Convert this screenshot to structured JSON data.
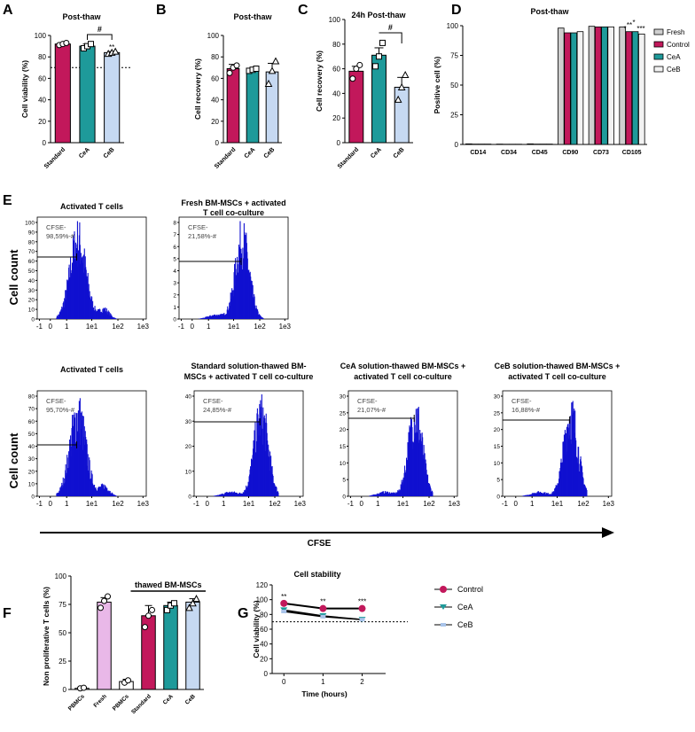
{
  "chart_data": [
    {
      "panel": "A",
      "type": "bar",
      "title": "Post-thaw",
      "ylabel": "Cell viability (%)",
      "ylim": [
        0,
        100
      ],
      "yticks": [
        0,
        20,
        40,
        60,
        80,
        100
      ],
      "categories": [
        "Standard",
        "CeA",
        "CeB"
      ],
      "values": [
        92,
        90,
        84
      ],
      "errors": [
        1,
        2,
        1
      ],
      "colors": [
        "#c2185b",
        "#1e9a9a",
        "#c6d9f2"
      ],
      "points": [
        [
          91,
          92,
          93
        ],
        [
          88,
          90,
          92
        ],
        [
          83,
          84,
          85
        ]
      ],
      "reference_line": 70,
      "annotations": {
        "bracket": "#",
        "stars": [
          "",
          "",
          "**"
        ]
      }
    },
    {
      "panel": "B",
      "type": "bar",
      "title": "Post-thaw",
      "ylabel": "Cell recovery (%)",
      "ylim": [
        0,
        100
      ],
      "yticks": [
        0,
        20,
        40,
        60,
        80,
        100
      ],
      "categories": [
        "Standard",
        "CeA",
        "CeB"
      ],
      "values": [
        69,
        68,
        66
      ],
      "errors": [
        4,
        1,
        8
      ],
      "colors": [
        "#c2185b",
        "#1e9a9a",
        "#c6d9f2"
      ],
      "points": [
        [
          65,
          70,
          72
        ],
        [
          67,
          68,
          69
        ],
        [
          55,
          67,
          76
        ]
      ]
    },
    {
      "panel": "C",
      "type": "bar",
      "title": "24h Post-thaw",
      "ylabel": "Cell recovery (%)",
      "ylim": [
        0,
        100
      ],
      "yticks": [
        0,
        20,
        40,
        60,
        80,
        100
      ],
      "categories": [
        "Standard",
        "CeA",
        "CeB"
      ],
      "values": [
        58,
        71,
        45
      ],
      "errors": [
        4,
        6,
        8
      ],
      "colors": [
        "#c2185b",
        "#1e9a9a",
        "#c6d9f2"
      ],
      "points": [
        [
          52,
          60,
          63
        ],
        [
          62,
          70,
          81
        ],
        [
          35,
          45,
          55
        ]
      ],
      "annotations": {
        "bracket": "#"
      }
    },
    {
      "panel": "D",
      "type": "bar",
      "title": "Post-thaw",
      "ylabel": "Positive cell (%)",
      "ylim": [
        0,
        100
      ],
      "yticks": [
        0,
        25,
        50,
        75,
        100
      ],
      "categories": [
        "CD14",
        "CD34",
        "CD45",
        "CD90",
        "CD73",
        "CD105"
      ],
      "series": [
        {
          "name": "Fresh",
          "color": "#cfcfcf",
          "values": [
            0.5,
            0.3,
            0.5,
            98,
            99.5,
            99
          ]
        },
        {
          "name": "Control",
          "color": "#c2185b",
          "values": [
            0.3,
            0.2,
            0.3,
            94,
            99,
            95
          ]
        },
        {
          "name": "CeA",
          "color": "#1e9a9a",
          "values": [
            0.3,
            0.2,
            0.3,
            94,
            99,
            95
          ]
        },
        {
          "name": "CeB",
          "color": "#f2f2f2",
          "values": [
            0.3,
            0.2,
            0.3,
            95,
            99,
            93
          ]
        }
      ],
      "annotations": [
        "*",
        "**",
        "*",
        "***"
      ]
    },
    {
      "panel": "E",
      "type": "histogram",
      "ylabel": "Cell count",
      "xlabel": "CFSE",
      "xticks": [
        "-1",
        "0",
        "1",
        "1e1",
        "1e2",
        "1e3"
      ],
      "plots": [
        {
          "title": "Activated T cells",
          "gate": "CFSE-",
          "gate_value": "98,59%-#",
          "yticks": [
            "0",
            "10",
            "20",
            "30",
            "40",
            "50",
            "60",
            "70",
            "80",
            "90",
            "100"
          ],
          "ymax": 100,
          "peak_log": 0.45
        },
        {
          "title": "Fresh BM-MSCs + activated T cell co-culture",
          "gate": "CFSE-",
          "gate_value": "21,58%-#",
          "yticks": [
            "0",
            "1",
            "2",
            "3",
            "4",
            "5",
            "6",
            "7",
            "8"
          ],
          "ymax": 8,
          "peak_log": 1.35
        },
        {
          "title": "Activated T cells",
          "gate": "CFSE-",
          "gate_value": "95,70%-#",
          "yticks": [
            "0",
            "10",
            "20",
            "30",
            "40",
            "50",
            "60",
            "70",
            "80"
          ],
          "ymax": 80,
          "peak_log": 0.45
        },
        {
          "title": "Standard solution-thawed BM-MSCs + activated T cell co-culture",
          "gate": "CFSE-",
          "gate_value": "24,85%-#",
          "yticks": [
            "0",
            "10",
            "20",
            "30",
            "40"
          ],
          "ymax": 40,
          "peak_log": 1.5
        },
        {
          "title": "CeA solution-thawed BM-MSCs + activated T cell co-culture",
          "gate": "CFSE-",
          "gate_value": "21,07%-#",
          "yticks": [
            "0",
            "5",
            "10",
            "15",
            "20",
            "25",
            "30"
          ],
          "ymax": 30,
          "peak_log": 1.5
        },
        {
          "title": "CeB solution-thawed BM-MSCs + activated T cell co-culture",
          "gate": "CFSE-",
          "gate_value": "16,88%-#",
          "yticks": [
            "0",
            "5",
            "10",
            "15",
            "20",
            "25",
            "30"
          ],
          "ymax": 30,
          "peak_log": 1.55
        }
      ]
    },
    {
      "panel": "F",
      "type": "bar",
      "ylabel": "Non proliferative T cells (%)",
      "ylim": [
        0,
        100
      ],
      "yticks": [
        0,
        25,
        50,
        75,
        100
      ],
      "categories": [
        "PBMCs",
        "Fresh",
        "PBMCs",
        "Standard",
        "CeA",
        "CeB"
      ],
      "values": [
        1,
        77,
        7,
        65,
        74,
        77
      ],
      "errors": [
        0.5,
        4,
        2,
        9,
        3,
        3
      ],
      "colors": [
        "#ffffff",
        "#e9b8e8",
        "#ffffff",
        "#c2185b",
        "#1e9a9a",
        "#c6d9f2"
      ],
      "group_label": "thawed BM-MSCs"
    },
    {
      "panel": "G",
      "type": "line",
      "title": "Cell stability",
      "xlabel": "Time (hours)",
      "ylabel": "Cell viability (%)",
      "x": [
        0,
        1,
        2
      ],
      "xlim": [
        -0.3,
        2.6
      ],
      "ylim": [
        0,
        120
      ],
      "yticks": [
        0,
        20,
        40,
        60,
        80,
        100,
        120
      ],
      "reference_line": 70,
      "series": [
        {
          "name": "Control",
          "color": "#c2185b",
          "values": [
            95,
            88,
            88
          ]
        },
        {
          "name": "CeA",
          "color": "#1e9a9a",
          "values": [
            86,
            78,
            73
          ]
        },
        {
          "name": "CeB",
          "color": "#a9c4ea",
          "values": [
            84,
            77,
            73
          ]
        }
      ],
      "annotations": [
        "**",
        "**",
        "***"
      ]
    }
  ]
}
